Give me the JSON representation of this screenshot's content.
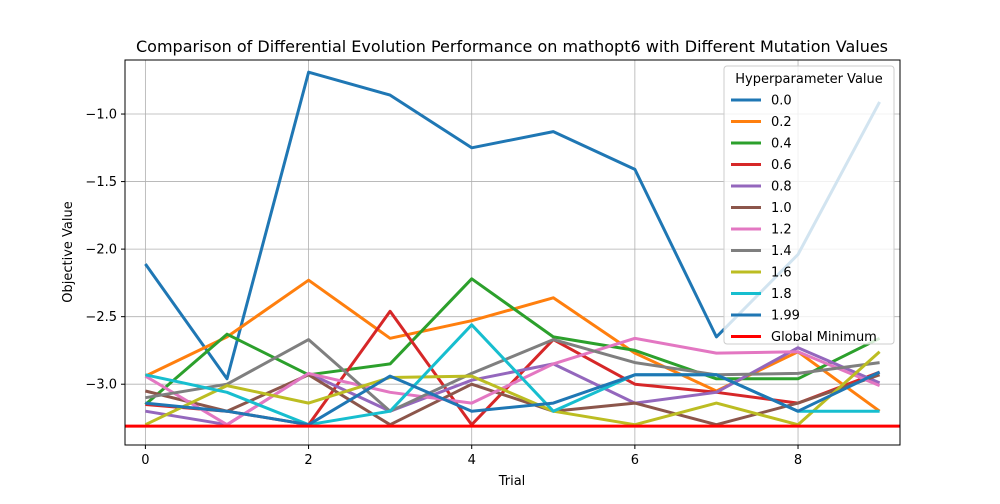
{
  "chart_data": {
    "type": "line",
    "title": "Comparison of Differential Evolution Performance on mathopt6 with Different Mutation Values",
    "xlabel": "Trial",
    "ylabel": "Objective Value",
    "x": [
      0,
      1,
      2,
      3,
      4,
      5,
      6,
      7,
      8,
      9
    ],
    "xlim": [
      -0.25,
      9.25
    ],
    "ylim": [
      -3.45,
      -0.6
    ],
    "xticks": [
      0,
      2,
      4,
      6,
      8
    ],
    "xtick_labels": [
      "0",
      "2",
      "4",
      "6",
      "8"
    ],
    "yticks": [
      -3.0,
      -2.5,
      -2.0,
      -1.5,
      -1.0
    ],
    "ytick_labels": [
      "−3.0",
      "−2.5",
      "−2.0",
      "−1.5",
      "−1.0"
    ],
    "grid": true,
    "legend_title": "Hyperparameter Value",
    "legend_position": "top-right",
    "series": [
      {
        "name": "0.0",
        "color": "#1f77b4",
        "values": [
          -2.11,
          -2.96,
          -0.69,
          -0.86,
          -1.25,
          -1.13,
          -1.41,
          -2.65,
          -2.04,
          -0.91
        ]
      },
      {
        "name": "0.2",
        "color": "#ff7f0e",
        "values": [
          -2.94,
          -2.65,
          -2.23,
          -2.66,
          -2.53,
          -2.36,
          -2.77,
          -3.05,
          -2.76,
          -3.2
        ]
      },
      {
        "name": "0.4",
        "color": "#2ca02c",
        "values": [
          -3.15,
          -2.63,
          -2.93,
          -2.85,
          -2.22,
          -2.65,
          -2.75,
          -2.96,
          -2.96,
          -2.66
        ]
      },
      {
        "name": "0.6",
        "color": "#d62728",
        "values": [
          -3.15,
          -3.2,
          -3.3,
          -2.46,
          -3.3,
          -2.67,
          -3.0,
          -3.06,
          -3.14,
          -2.91
        ]
      },
      {
        "name": "0.8",
        "color": "#9467bd",
        "values": [
          -3.2,
          -3.3,
          -2.92,
          -3.2,
          -2.97,
          -2.85,
          -3.14,
          -3.06,
          -2.73,
          -2.99
        ]
      },
      {
        "name": "1.0",
        "color": "#8c564b",
        "values": [
          -3.05,
          -3.2,
          -2.93,
          -3.3,
          -3.0,
          -3.2,
          -3.14,
          -3.3,
          -3.14,
          -2.93
        ]
      },
      {
        "name": "1.2",
        "color": "#e377c2",
        "values": [
          -2.94,
          -3.3,
          -2.92,
          -3.06,
          -3.14,
          -2.85,
          -2.66,
          -2.77,
          -2.76,
          -3.01
        ]
      },
      {
        "name": "1.4",
        "color": "#7f7f7f",
        "values": [
          -3.1,
          -3.0,
          -2.67,
          -3.2,
          -2.92,
          -2.67,
          -2.84,
          -2.93,
          -2.92,
          -2.84
        ]
      },
      {
        "name": "1.6",
        "color": "#bcbd22",
        "values": [
          -3.3,
          -3.01,
          -3.14,
          -2.95,
          -2.94,
          -3.2,
          -3.3,
          -3.14,
          -3.3,
          -2.76
        ]
      },
      {
        "name": "1.8",
        "color": "#17becf",
        "values": [
          -2.93,
          -3.06,
          -3.3,
          -3.2,
          -2.56,
          -3.2,
          -2.93,
          -2.93,
          -3.2,
          -3.2
        ]
      },
      {
        "name": "1.99",
        "color": "#1f77b4",
        "values": [
          -3.14,
          -3.2,
          -3.3,
          -2.94,
          -3.2,
          -3.14,
          -2.93,
          -2.93,
          -3.2,
          -2.91
        ]
      }
    ],
    "reference_line": {
      "name": "Global Minimum",
      "color": "#ff0000",
      "value": -3.31
    }
  }
}
